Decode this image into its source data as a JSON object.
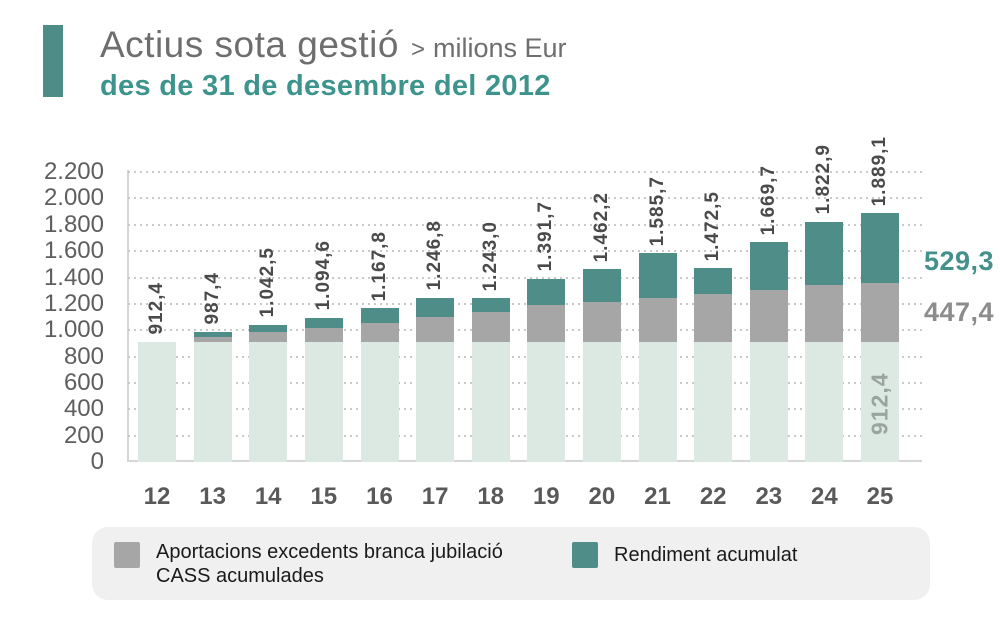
{
  "header": {
    "title": "Actius sota gestió",
    "separator": ">",
    "unit": "milions Eur",
    "subtitle": "des de 31 de desembre del 2012"
  },
  "colors": {
    "teal": "#4F8D88",
    "gray": "#A6A6A6",
    "mint": "#DCE9E3",
    "teal_text": "#43918A",
    "gray_text": "#8C8C8C",
    "inbar_text": "#9AA49E",
    "title_text": "#6E6E6E",
    "subtitle_text": "#3D948C",
    "value_label": "#4A4A4A",
    "axis_text": "#5E5E5E",
    "grid": "#C9C9C9",
    "legend_bg": "#F0F0F0"
  },
  "chart_data": {
    "type": "bar",
    "stacked": true,
    "title": "Actius sota gestió (milions Eur)",
    "categories": [
      "12",
      "13",
      "14",
      "15",
      "16",
      "17",
      "18",
      "19",
      "20",
      "21",
      "22",
      "23",
      "24",
      "25"
    ],
    "totals": [
      912.4,
      987.4,
      1042.5,
      1094.6,
      1167.8,
      1246.8,
      1243.0,
      1391.7,
      1462.2,
      1585.7,
      1472.5,
      1669.7,
      1822.9,
      1889.1
    ],
    "total_labels": [
      "912,4",
      "987,4",
      "1.042,5",
      "1.094,6",
      "1.167,8",
      "1.246,8",
      "1.243,0",
      "1.391,7",
      "1.462,2",
      "1.585,7",
      "1.472,5",
      "1.669,7",
      "1.822,9",
      "1.889,1"
    ],
    "series": [
      {
        "id": "base",
        "color_key": "mint",
        "values": [
          912.4,
          912.4,
          912.4,
          912.4,
          912.4,
          912.4,
          912.4,
          912.4,
          912.4,
          912.4,
          912.4,
          912.4,
          912.4,
          912.4
        ]
      },
      {
        "id": "aportacions",
        "label": "Aportacions excedents branca jubilació CASS acumulades",
        "color_key": "gray",
        "values": [
          0,
          35.0,
          70.0,
          100.0,
          140.0,
          185.0,
          225.0,
          280.0,
          305.0,
          330.0,
          360.0,
          395.0,
          428.0,
          447.4
        ]
      },
      {
        "id": "rendiment",
        "label": "Rendiment acumulat",
        "color_key": "teal",
        "values": [
          0,
          40.0,
          60.1,
          82.2,
          115.4,
          149.4,
          105.6,
          199.3,
          244.8,
          343.3,
          200.1,
          362.3,
          482.5,
          529.3
        ]
      }
    ],
    "ylim": [
      0,
      2200
    ],
    "y_tick_values": [
      0,
      200,
      400,
      600,
      800,
      1000,
      1200,
      1400,
      1600,
      1800,
      2000,
      2200
    ],
    "y_tick_labels": [
      "0",
      "200",
      "400",
      "600",
      "800",
      "1.000",
      "1.200",
      "1.400",
      "1.600",
      "1.800",
      "2.000",
      "2.200"
    ],
    "grid": "horizontal dotted",
    "legend_position": "bottom",
    "annotations": {
      "rendiment_final": "529,3",
      "aportacions_final": "447,4",
      "base_inside_bar": "912,4"
    }
  },
  "legend": {
    "items": [
      {
        "label": "Aportacions excedents branca jubilació CASS acumulades",
        "color_key": "gray"
      },
      {
        "label": "Rendiment acumulat",
        "color_key": "teal"
      }
    ]
  }
}
